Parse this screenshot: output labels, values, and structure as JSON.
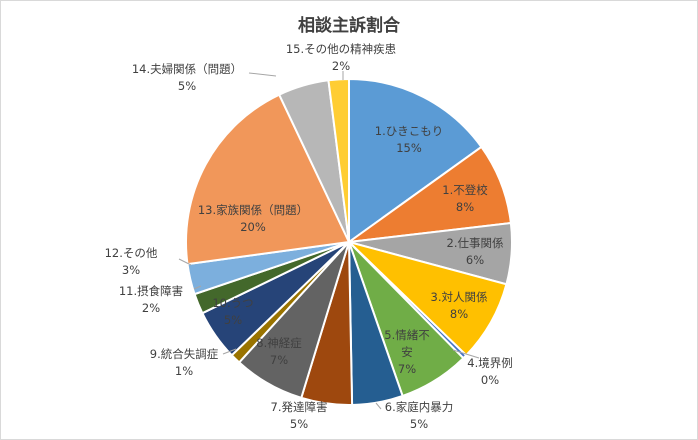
{
  "chart_data": {
    "type": "pie",
    "title": "相談主訴割合",
    "slices": [
      {
        "label": "1.ひきこもり",
        "value": 15,
        "pct": "15%",
        "color": "#5b9bd5"
      },
      {
        "label": "1.不登校",
        "value": 8,
        "pct": "8%",
        "color": "#ed7d31"
      },
      {
        "label": "2.仕事関係",
        "value": 6,
        "pct": "6%",
        "color": "#a5a5a5"
      },
      {
        "label": "3.対人関係",
        "value": 8,
        "pct": "8%",
        "color": "#ffc000"
      },
      {
        "label": "4.境界例",
        "value": 0.4,
        "pct": "0%",
        "color": "#4472c4"
      },
      {
        "label": "5.情緒不安",
        "value": 7,
        "pct": "7%",
        "color": "#70ad47"
      },
      {
        "label": "6.家庭内暴力",
        "value": 5,
        "pct": "5%",
        "color": "#255e91"
      },
      {
        "label": "7.発達障害",
        "value": 5,
        "pct": "5%",
        "color": "#9e480e"
      },
      {
        "label": "8.神経症",
        "value": 7,
        "pct": "7%",
        "color": "#636363"
      },
      {
        "label": "9.統合失調症",
        "value": 1,
        "pct": "1%",
        "color": "#997300"
      },
      {
        "label": "10.うつ",
        "value": 5,
        "pct": "5%",
        "color": "#264478"
      },
      {
        "label": "11.摂食障害",
        "value": 2,
        "pct": "2%",
        "color": "#43682b"
      },
      {
        "label": "12.その他",
        "value": 3,
        "pct": "3%",
        "color": "#7cafdd"
      },
      {
        "label": "13.家族関係（問題）",
        "value": 20,
        "pct": "20%",
        "color": "#f1975a"
      },
      {
        "label": "14.夫婦関係（問題）",
        "value": 5,
        "pct": "5%",
        "color": "#b7b7b7"
      },
      {
        "label": "15.その他の精神疾患",
        "value": 2,
        "pct": "2%",
        "color": "#ffcd33"
      }
    ]
  }
}
